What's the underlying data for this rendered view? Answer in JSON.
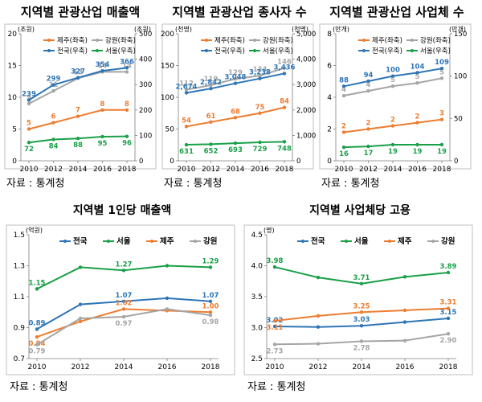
{
  "source_label": "자료 : 통계청",
  "colors": {
    "jeju": "#ed7d31",
    "gangwon": "#a5a5a5",
    "national": "#2e75b6",
    "seoul": "#1aa048",
    "frame": "#bfbfbf",
    "text": "#000000"
  },
  "chart_data": [
    {
      "id": "c1",
      "type": "line",
      "title": "지역별 관광산업 매출액",
      "left_unit": "(조원)",
      "right_unit": "(조원)",
      "x": [
        "2010",
        "2012",
        "2014",
        "2016",
        "2018"
      ],
      "ylim_left": [
        0,
        20
      ],
      "yticks_left": [
        "0",
        "5",
        "10",
        "15",
        "20"
      ],
      "ylim_right": [
        0,
        500
      ],
      "yticks_right": [
        "0",
        "100",
        "200",
        "300",
        "400",
        "500"
      ],
      "legend": [
        "제주(좌축)",
        "강원(좌축)",
        "전국(우축)",
        "서울(우축)"
      ],
      "series": [
        {
          "name": "제주(좌축)",
          "color": "jeju",
          "axis": "left",
          "values": [
            5,
            6,
            7,
            8,
            8
          ],
          "labels": [
            "5",
            "6",
            "7",
            "8",
            "8"
          ]
        },
        {
          "name": "강원(좌축)",
          "color": "gangwon",
          "axis": "left",
          "values": [
            9,
            11,
            13,
            14,
            14
          ],
          "labels": [
            "9",
            "11",
            "13",
            "14",
            "14"
          ]
        },
        {
          "name": "전국(우축)",
          "color": "national",
          "axis": "right",
          "values": [
            239,
            299,
            327,
            354,
            366
          ],
          "labels": [
            "239",
            "299",
            "327",
            "354",
            "366"
          ]
        },
        {
          "name": "서울(우축)",
          "color": "seoul",
          "axis": "right",
          "values": [
            72,
            84,
            88,
            95,
            96
          ],
          "labels": [
            "72",
            "84",
            "88",
            "95",
            "96"
          ]
        }
      ]
    },
    {
      "id": "c2",
      "type": "line",
      "title": "지역별 관광산업 종사자 수",
      "left_unit": "(천명)",
      "right_unit": "(천명)",
      "x": [
        "2010",
        "2012",
        "2014",
        "2016",
        "2018"
      ],
      "ylim_left": [
        0,
        200
      ],
      "yticks_left": [
        "0",
        "50",
        "100",
        "150",
        "200"
      ],
      "ylim_right": [
        0,
        5000
      ],
      "yticks_right": [
        "0",
        "1,000",
        "2,000",
        "3,000",
        "4,000",
        "5,000"
      ],
      "legend": [
        "제주(좌축)",
        "강원(좌축)",
        "전국(우축)",
        "서울(우축)"
      ],
      "series": [
        {
          "name": "제주(좌축)",
          "color": "jeju",
          "axis": "left",
          "values": [
            54,
            61,
            68,
            75,
            84
          ],
          "labels": [
            "54",
            "61",
            "68",
            "75",
            "84"
          ]
        },
        {
          "name": "강원(좌축)",
          "color": "gangwon",
          "axis": "left",
          "values": [
            112,
            119,
            129,
            134,
            146
          ],
          "labels": [
            "112",
            "119",
            "129",
            "134",
            "146"
          ]
        },
        {
          "name": "전국(우축)",
          "color": "national",
          "axis": "right",
          "values": [
            2674,
            2842,
            3048,
            3238,
            3436
          ],
          "labels": [
            "2,674",
            "2,842",
            "3,048",
            "3,238",
            "3,436"
          ]
        },
        {
          "name": "서울(우축)",
          "color": "seoul",
          "axis": "right",
          "values": [
            631,
            652,
            693,
            729,
            748
          ],
          "labels": [
            "631",
            "652",
            "693",
            "729",
            "748"
          ]
        }
      ]
    },
    {
      "id": "c3",
      "type": "line",
      "title": "지역별 관광산업 사업체 수",
      "left_unit": "(만개)",
      "right_unit": "(만개)",
      "x": [
        "2010",
        "2012",
        "2014",
        "2016",
        "2018"
      ],
      "ylim_left": [
        0,
        8
      ],
      "yticks_left": [
        "0",
        "2",
        "4",
        "6",
        "8"
      ],
      "ylim_right": [
        0,
        150
      ],
      "yticks_right": [
        "0",
        "50",
        "100",
        "150"
      ],
      "legend": [
        "제주(좌축)",
        "강원(좌축)",
        "전국(우축)",
        "서울(우축)"
      ],
      "series": [
        {
          "name": "제주(좌축)",
          "color": "jeju",
          "axis": "left",
          "values": [
            1.8,
            2.0,
            2.2,
            2.4,
            2.6
          ],
          "labels": [
            "2",
            "2",
            "2",
            "2",
            "3"
          ]
        },
        {
          "name": "강원(좌축)",
          "color": "gangwon",
          "axis": "left",
          "values": [
            4.1,
            4.4,
            4.7,
            4.9,
            5.2
          ],
          "labels": [
            "4",
            "4",
            "5",
            "5",
            "5"
          ]
        },
        {
          "name": "전국(우축)",
          "color": "national",
          "axis": "right",
          "values": [
            88,
            94,
            100,
            104,
            109
          ],
          "labels": [
            "88",
            "94",
            "100",
            "104",
            "109"
          ]
        },
        {
          "name": "서울(우축)",
          "color": "seoul",
          "axis": "right",
          "values": [
            16,
            17,
            19,
            19,
            19
          ],
          "labels": [
            "16",
            "17",
            "19",
            "19",
            "19"
          ]
        }
      ]
    },
    {
      "id": "c4",
      "type": "line",
      "title": "지역별 1인당 매출액",
      "left_unit": "(억원)",
      "x": [
        "2010",
        "2012",
        "2014",
        "2016",
        "2018"
      ],
      "ylim_left": [
        0.7,
        1.5
      ],
      "yticks_left": [
        "0.7",
        "0.9",
        "1.1",
        "1.3",
        "1.5"
      ],
      "legend": [
        "전국",
        "서울",
        "제주",
        "강원"
      ],
      "series": [
        {
          "name": "전국",
          "color": "national",
          "values": [
            0.89,
            1.05,
            1.07,
            1.09,
            1.07
          ],
          "labels": [
            "0.89",
            "",
            "1.07",
            "",
            "1.07"
          ]
        },
        {
          "name": "서울",
          "color": "seoul",
          "values": [
            1.15,
            1.29,
            1.27,
            1.3,
            1.29
          ],
          "labels": [
            "1.15",
            "",
            "1.27",
            "",
            "1.29"
          ]
        },
        {
          "name": "제주",
          "color": "jeju",
          "values": [
            0.84,
            0.94,
            1.02,
            1.01,
            1.0
          ],
          "labels": [
            "0.84",
            "",
            "1.02",
            "",
            "1.00"
          ]
        },
        {
          "name": "강원",
          "color": "gangwon",
          "values": [
            0.79,
            0.96,
            0.97,
            1.02,
            0.98
          ],
          "labels": [
            "0.79",
            "",
            "0.97",
            "",
            "0.98"
          ]
        }
      ]
    },
    {
      "id": "c5",
      "type": "line",
      "title": "지역별 사업체당 고용",
      "left_unit": "(명)",
      "x": [
        "2010",
        "2012",
        "2014",
        "2016",
        "2018"
      ],
      "ylim_left": [
        2.5,
        4.5
      ],
      "yticks_left": [
        "2.5",
        "3.0",
        "3.5",
        "4.0",
        "4.5"
      ],
      "legend": [
        "전국",
        "서울",
        "제주",
        "강원"
      ],
      "series": [
        {
          "name": "전국",
          "color": "national",
          "values": [
            3.02,
            3.01,
            3.03,
            3.09,
            3.15
          ],
          "labels": [
            "3.02",
            "",
            "3.03",
            "",
            "3.15"
          ]
        },
        {
          "name": "서울",
          "color": "seoul",
          "values": [
            3.98,
            3.81,
            3.71,
            3.82,
            3.89
          ],
          "labels": [
            "3.98",
            "",
            "3.71",
            "",
            "3.89"
          ]
        },
        {
          "name": "제주",
          "color": "jeju",
          "values": [
            3.11,
            3.19,
            3.25,
            3.28,
            3.31
          ],
          "labels": [
            "3.11",
            "",
            "3.25",
            "",
            "3.31"
          ]
        },
        {
          "name": "강원",
          "color": "gangwon",
          "values": [
            2.73,
            2.74,
            2.78,
            2.79,
            2.9
          ],
          "labels": [
            "2.73",
            "",
            "2.78",
            "",
            "2.90"
          ]
        }
      ]
    }
  ]
}
